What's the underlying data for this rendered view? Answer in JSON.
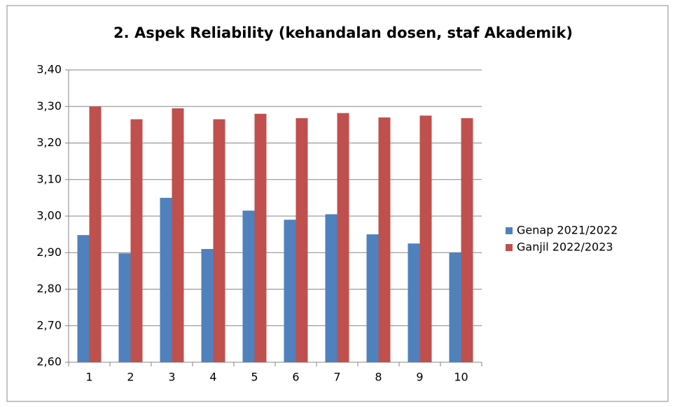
{
  "chart_data": {
    "type": "bar",
    "title": "2. Aspek Reliability (kehandalan dosen, staf Akademik)",
    "categories": [
      "1",
      "2",
      "3",
      "4",
      "5",
      "6",
      "7",
      "8",
      "9",
      "10"
    ],
    "series": [
      {
        "name": "Genap 2021/2022",
        "color": "#4f81bd",
        "values": [
          2.948,
          2.898,
          3.05,
          2.91,
          3.015,
          2.99,
          3.005,
          2.95,
          2.925,
          2.9
        ]
      },
      {
        "name": "Ganjil 2022/2023",
        "color": "#c0504d",
        "values": [
          3.3,
          3.265,
          3.295,
          3.265,
          3.28,
          3.268,
          3.282,
          3.27,
          3.275,
          3.268
        ]
      }
    ],
    "ylim": [
      2.6,
      3.4
    ],
    "yticks": [
      {
        "value": 2.6,
        "label": "2,60"
      },
      {
        "value": 2.7,
        "label": "2,70"
      },
      {
        "value": 2.8,
        "label": "2,80"
      },
      {
        "value": 2.9,
        "label": "2,90"
      },
      {
        "value": 3.0,
        "label": "3,00"
      },
      {
        "value": 3.1,
        "label": "3,10"
      },
      {
        "value": 3.2,
        "label": "3,20"
      },
      {
        "value": 3.3,
        "label": "3,30"
      },
      {
        "value": 3.4,
        "label": "3,40"
      }
    ],
    "grid": true,
    "legend": "right"
  }
}
